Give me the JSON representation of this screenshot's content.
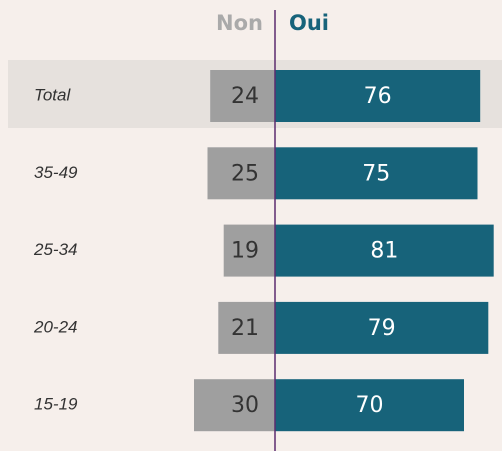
{
  "chart_data": {
    "type": "bar",
    "categories": [
      "Total",
      "35-49",
      "25-34",
      "20-24",
      "15-19"
    ],
    "series": [
      {
        "name": "Non",
        "color": "#9f9f9f",
        "values": [
          24,
          25,
          19,
          21,
          30
        ]
      },
      {
        "name": "Oui",
        "color": "#17637a",
        "values": [
          76,
          75,
          81,
          79,
          70
        ]
      }
    ]
  }
}
